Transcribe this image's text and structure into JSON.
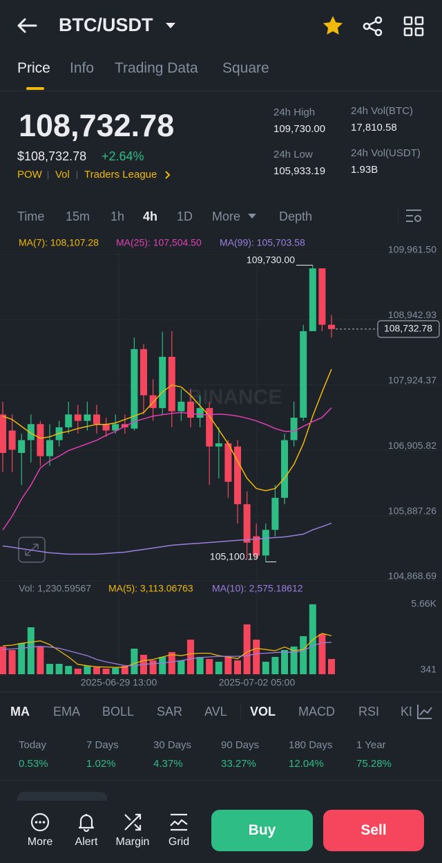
{
  "header": {
    "pair": "BTC/USDT"
  },
  "tabs": [
    "Price",
    "Info",
    "Trading Data",
    "Square"
  ],
  "ticker": {
    "price": "108,732.78",
    "price_usd": "$108,732.78",
    "change": "+2.64%",
    "tags": [
      "POW",
      "Vol",
      "Traders League"
    ]
  },
  "stats": [
    {
      "label": "24h High",
      "value": "109,730.00"
    },
    {
      "label": "24h Vol(BTC)",
      "value": "17,810.58"
    },
    {
      "label": "24h Low",
      "value": "105,933.19"
    },
    {
      "label": "24h Vol(USDT)",
      "value": "1.93B"
    }
  ],
  "intervals": [
    "Time",
    "15m",
    "1h",
    "4h",
    "1D",
    "More",
    "Depth"
  ],
  "indicators": [
    "MA",
    "EMA",
    "BOLL",
    "SAR",
    "AVL",
    "VOL",
    "MACD",
    "RSI",
    "KD"
  ],
  "performance": [
    {
      "label": "Today",
      "value": "0.53%"
    },
    {
      "label": "7 Days",
      "value": "1.02%"
    },
    {
      "label": "30 Days",
      "value": "4.37%"
    },
    {
      "label": "90 Days",
      "value": "33.27%"
    },
    {
      "label": "180 Days",
      "value": "12.04%"
    },
    {
      "label": "1 Year",
      "value": "75.28%"
    }
  ],
  "actions": {
    "tools": [
      "More",
      "Alert",
      "Margin",
      "Grid"
    ],
    "buy": "Buy",
    "sell": "Sell"
  },
  "chart_data": [
    {
      "type": "candlestick",
      "watermark": "BINANCE",
      "up_color": "#2ebd85",
      "down_color": "#f6465d",
      "grid": true,
      "ylim": [
        104868.69,
        109961.5
      ],
      "yticks": [
        {
          "value": 109961.5,
          "label": "109,961.50"
        },
        {
          "value": 108942.93,
          "label": "108,942.93"
        },
        {
          "value": 107924.37,
          "label": "107,924.37"
        },
        {
          "value": 106905.82,
          "label": "106,905.82"
        },
        {
          "value": 105887.26,
          "label": "105,887.26"
        },
        {
          "value": 104868.69,
          "label": "104,868.69"
        }
      ],
      "open": [
        107400,
        107150,
        106800,
        107000,
        107250,
        106750,
        107000,
        107200,
        107400,
        107300,
        107400,
        107250,
        107150,
        107250,
        107180,
        108420,
        107700,
        107500,
        108300,
        107450,
        107600,
        107350,
        107500,
        106900,
        106950,
        106900,
        106000,
        105500,
        105200,
        105600,
        106100,
        107000,
        107350,
        108700,
        109680,
        108800
      ],
      "high": [
        107600,
        107400,
        107100,
        107400,
        107300,
        107250,
        107300,
        107600,
        107550,
        107600,
        107550,
        107350,
        107400,
        107400,
        108600,
        108500,
        107950,
        108690,
        108700,
        107800,
        107800,
        107700,
        107600,
        107200,
        107000,
        107000,
        106200,
        105700,
        105700,
        106300,
        107100,
        107600,
        108800,
        109730,
        109680,
        108950
      ],
      "low": [
        106500,
        106500,
        106300,
        106650,
        106600,
        106600,
        106900,
        107100,
        107100,
        107150,
        107100,
        107050,
        107100,
        107100,
        107150,
        107400,
        107300,
        107400,
        107200,
        107300,
        107200,
        107200,
        106300,
        106400,
        106100,
        105700,
        105150,
        105150,
        105100.19,
        105500,
        106000,
        106900,
        107300,
        108700,
        108700,
        108600
      ],
      "close": [
        106800,
        106850,
        107000,
        107250,
        106750,
        107000,
        107200,
        107400,
        107300,
        107400,
        107250,
        107150,
        107250,
        107200,
        108420,
        107700,
        107500,
        108300,
        107450,
        107600,
        107350,
        107500,
        106900,
        106950,
        106350,
        106000,
        105400,
        105200,
        105600,
        106100,
        107000,
        107350,
        108700,
        109680,
        108800,
        108732.78
      ],
      "high_label": {
        "value": 109730.0,
        "label": "109,730.00"
      },
      "low_label": {
        "value": 105100.19,
        "label": "105,100.19"
      },
      "last_price": {
        "value": 108732.78,
        "label": "108,732.78"
      },
      "x_labels": [
        "2025-06-29 13:00",
        "2025-07-02 05:00"
      ],
      "series": [
        {
          "name": "MA(7): 108,107.28",
          "color": "#f0b90b",
          "values": [
            107375,
            107321,
            107214,
            107106,
            107030,
            107052,
            107106,
            107138,
            107181,
            107214,
            107246,
            107246,
            107268,
            107321,
            107375,
            107430,
            107591,
            107752,
            107860,
            107828,
            107699,
            107537,
            107375,
            107160,
            106944,
            106675,
            106406,
            106244,
            106211,
            106244,
            106406,
            106621,
            106944,
            107375,
            107752,
            108107.28
          ]
        },
        {
          "name": "MA(25): 107,504.50",
          "color": "#e040b4",
          "values": [
            105597,
            105813,
            106082,
            106298,
            106567,
            106675,
            106750,
            106837,
            106890,
            106944,
            106998,
            107074,
            107138,
            107214,
            107289,
            107332,
            107375,
            107397,
            107418,
            107430,
            107418,
            107397,
            107397,
            107407,
            107397,
            107375,
            107343,
            107300,
            107246,
            107181,
            107138,
            107138,
            107214,
            107289,
            107354,
            107504.5
          ]
        },
        {
          "name": "MA(99): 105,703.58",
          "color": "#9b7ee0",
          "values": [
            105349,
            105328,
            105306,
            105285,
            105263,
            105242,
            105231,
            105220,
            105220,
            105220,
            105220,
            105231,
            105242,
            105252,
            105274,
            105295,
            105317,
            105338,
            105360,
            105371,
            105382,
            105392,
            105403,
            105414,
            105425,
            105436,
            105446,
            105457,
            105468,
            105479,
            105489,
            105511,
            105533,
            105600,
            105650,
            105703.58
          ]
        }
      ]
    },
    {
      "type": "bar",
      "name": "Vol: 1,230.59567",
      "ylim": [
        0,
        6100
      ],
      "yticks": [
        {
          "value": 5660,
          "label": "5.66K"
        },
        341
      ],
      "values": [
        2240,
        1960,
        2520,
        3800,
        2240,
        840,
        840,
        670,
        450,
        670,
        560,
        450,
        500,
        670,
        2070,
        1570,
        1120,
        1400,
        1790,
        1120,
        2800,
        1400,
        1230,
        1010,
        1400,
        1120,
        4030,
        2800,
        1010,
        1400,
        1960,
        2240,
        3080,
        5660,
        3250,
        1230.59567
      ],
      "series": [
        {
          "name": "MA(5): 3,113.06763",
          "color": "#f0b90b",
          "values": [
            2300,
            2350,
            2500,
            2600,
            2700,
            2400,
            1900,
            1400,
            800,
            690,
            600,
            580,
            550,
            570,
            870,
            1100,
            1200,
            1400,
            1590,
            1500,
            1650,
            1700,
            1700,
            1500,
            1400,
            1250,
            1800,
            2100,
            2000,
            1900,
            2200,
            1900,
            2000,
            2800,
            3300,
            3113.06763
          ]
        },
        {
          "name": "MA(10): 2,575.18612",
          "color": "#9b7ee0",
          "values": [
            2000,
            2050,
            2100,
            2200,
            2250,
            2200,
            2100,
            1900,
            1700,
            1500,
            1200,
            1000,
            850,
            700,
            700,
            800,
            850,
            900,
            1000,
            1100,
            1250,
            1350,
            1400,
            1450,
            1450,
            1450,
            1500,
            1650,
            1700,
            1750,
            1800,
            1750,
            1900,
            2300,
            2550,
            2575.18612
          ]
        }
      ]
    }
  ]
}
